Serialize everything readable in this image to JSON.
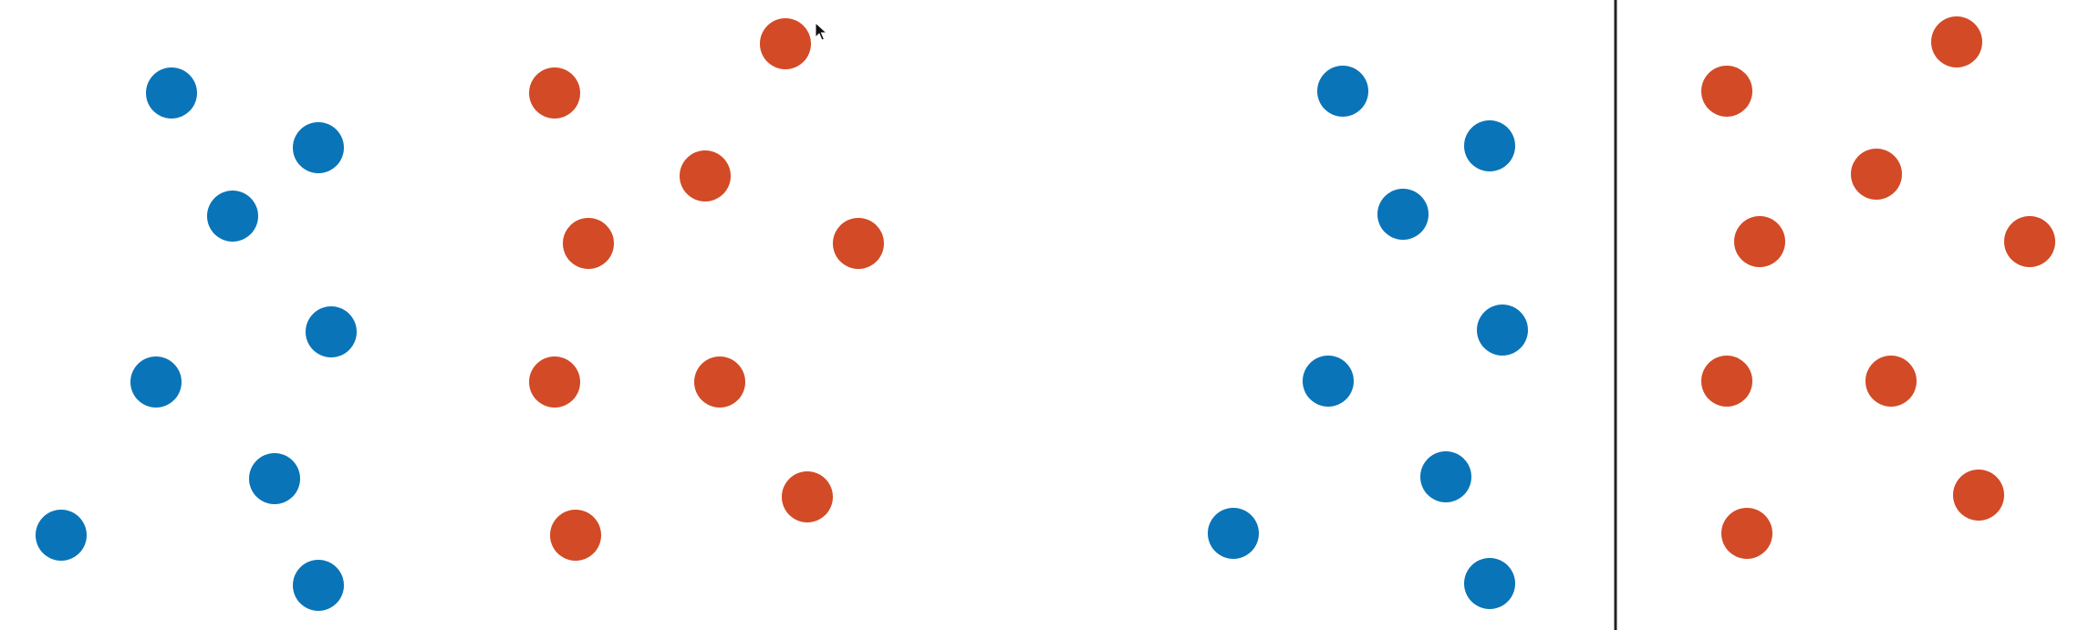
{
  "title": "",
  "colors": {
    "background": "#ffffff",
    "class_a": "#0a74b8",
    "class_b": "#d24a26",
    "separator": "#222222"
  },
  "panels": [
    {
      "name": "left-panel",
      "separator": false,
      "points": [
        {
          "class": "a"
        },
        {
          "class": "a"
        },
        {
          "class": "a"
        },
        {
          "class": "a"
        },
        {
          "class": "a"
        },
        {
          "class": "a"
        },
        {
          "class": "a"
        },
        {
          "class": "a"
        },
        {
          "class": "b"
        },
        {
          "class": "b"
        },
        {
          "class": "b"
        },
        {
          "class": "b"
        },
        {
          "class": "b"
        },
        {
          "class": "b"
        },
        {
          "class": "b"
        },
        {
          "class": "b"
        },
        {
          "class": "b"
        }
      ]
    },
    {
      "name": "right-panel",
      "separator": true,
      "points": [
        {
          "class": "a"
        },
        {
          "class": "a"
        },
        {
          "class": "a"
        },
        {
          "class": "a"
        },
        {
          "class": "a"
        },
        {
          "class": "a"
        },
        {
          "class": "a"
        },
        {
          "class": "a"
        },
        {
          "class": "b"
        },
        {
          "class": "b"
        },
        {
          "class": "b"
        },
        {
          "class": "b"
        },
        {
          "class": "b"
        },
        {
          "class": "b"
        },
        {
          "class": "b"
        },
        {
          "class": "b"
        },
        {
          "class": "b"
        }
      ]
    }
  ],
  "cursor": {
    "icon": "mouse-pointer-icon"
  }
}
